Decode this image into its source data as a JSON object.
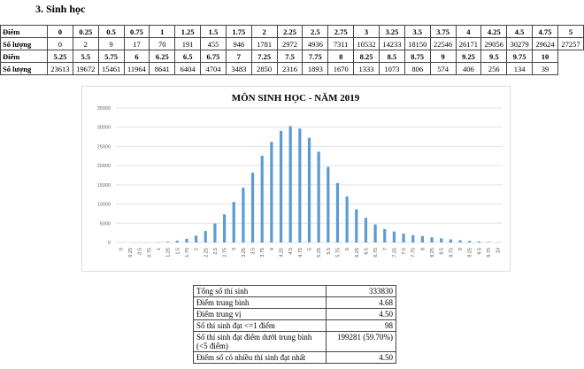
{
  "heading": "3.  Sinh học",
  "table": {
    "row_label_score": "Điểm",
    "row_label_count": "Số lượng",
    "block1_scores": [
      "0",
      "0.25",
      "0.5",
      "0.75",
      "1",
      "1.25",
      "1.5",
      "1.75",
      "2",
      "2.25",
      "2.5",
      "2.75",
      "3",
      "3.25",
      "3.5",
      "3.75",
      "4",
      "4.25",
      "4.5",
      "4.75",
      "5"
    ],
    "block1_counts": [
      "0",
      "2",
      "9",
      "17",
      "70",
      "191",
      "455",
      "946",
      "1781",
      "2972",
      "4936",
      "7311",
      "10532",
      "14233",
      "18150",
      "22546",
      "26171",
      "29056",
      "30279",
      "29624",
      "27257"
    ],
    "block2_scores": [
      "5.25",
      "5.5",
      "5.75",
      "6",
      "6.25",
      "6.5",
      "6.75",
      "7",
      "7.25",
      "7.5",
      "7.75",
      "8",
      "8.25",
      "8.5",
      "8.75",
      "9",
      "9.25",
      "9.5",
      "9.75",
      "10"
    ],
    "block2_counts": [
      "23613",
      "19672",
      "15461",
      "11964",
      "8641",
      "6404",
      "4704",
      "3483",
      "2850",
      "2316",
      "1893",
      "1670",
      "1333",
      "1073",
      "806",
      "574",
      "406",
      "256",
      "134",
      "39"
    ]
  },
  "chart_data": {
    "type": "bar",
    "title": "MÔN SINH HỌC - NĂM 2019",
    "xlabel": "",
    "ylabel": "",
    "ylim": [
      0,
      35000
    ],
    "yticks": [
      "0",
      "5000",
      "10000",
      "15000",
      "20000",
      "25000",
      "30000",
      "35000"
    ],
    "grid": true,
    "bar_color": "#5b9bd5",
    "categories": [
      "0",
      "0.25",
      "0.5",
      "0.75",
      "1",
      "1.25",
      "1.5",
      "1.75",
      "2",
      "2.25",
      "2.5",
      "2.75",
      "3",
      "3.25",
      "3.5",
      "3.75",
      "4",
      "4.25",
      "4.5",
      "4.75",
      "5",
      "5.25",
      "5.5",
      "5.75",
      "6",
      "6.25",
      "6.5",
      "6.75",
      "7",
      "7.25",
      "7.5",
      "7.75",
      "8",
      "8.25",
      "8.5",
      "8.75",
      "9",
      "9.25",
      "9.5",
      "9.75",
      "10"
    ],
    "values": [
      0,
      2,
      9,
      17,
      70,
      191,
      455,
      946,
      1781,
      2972,
      4936,
      7311,
      10532,
      14233,
      18150,
      22546,
      26171,
      29056,
      30279,
      29624,
      27257,
      23613,
      19672,
      15461,
      11964,
      8641,
      6404,
      4704,
      3483,
      2850,
      2316,
      1893,
      1670,
      1333,
      1073,
      806,
      574,
      406,
      256,
      134,
      39
    ]
  },
  "stats": [
    {
      "label": "Tổng số thí sinh",
      "value": "333830"
    },
    {
      "label": "Điểm trung bình",
      "value": "4.68"
    },
    {
      "label": "Điểm trung vị",
      "value": "4.50"
    },
    {
      "label": "Số thí sinh đạt <=1 điểm",
      "value": "98"
    },
    {
      "label": "Số thí sinh đạt điểm dưới trung bình (<5 điểm)",
      "value": "199281 (59.70%)"
    },
    {
      "label": "Điểm số có nhiều thí sinh đạt nhất",
      "value": "4.50"
    }
  ]
}
